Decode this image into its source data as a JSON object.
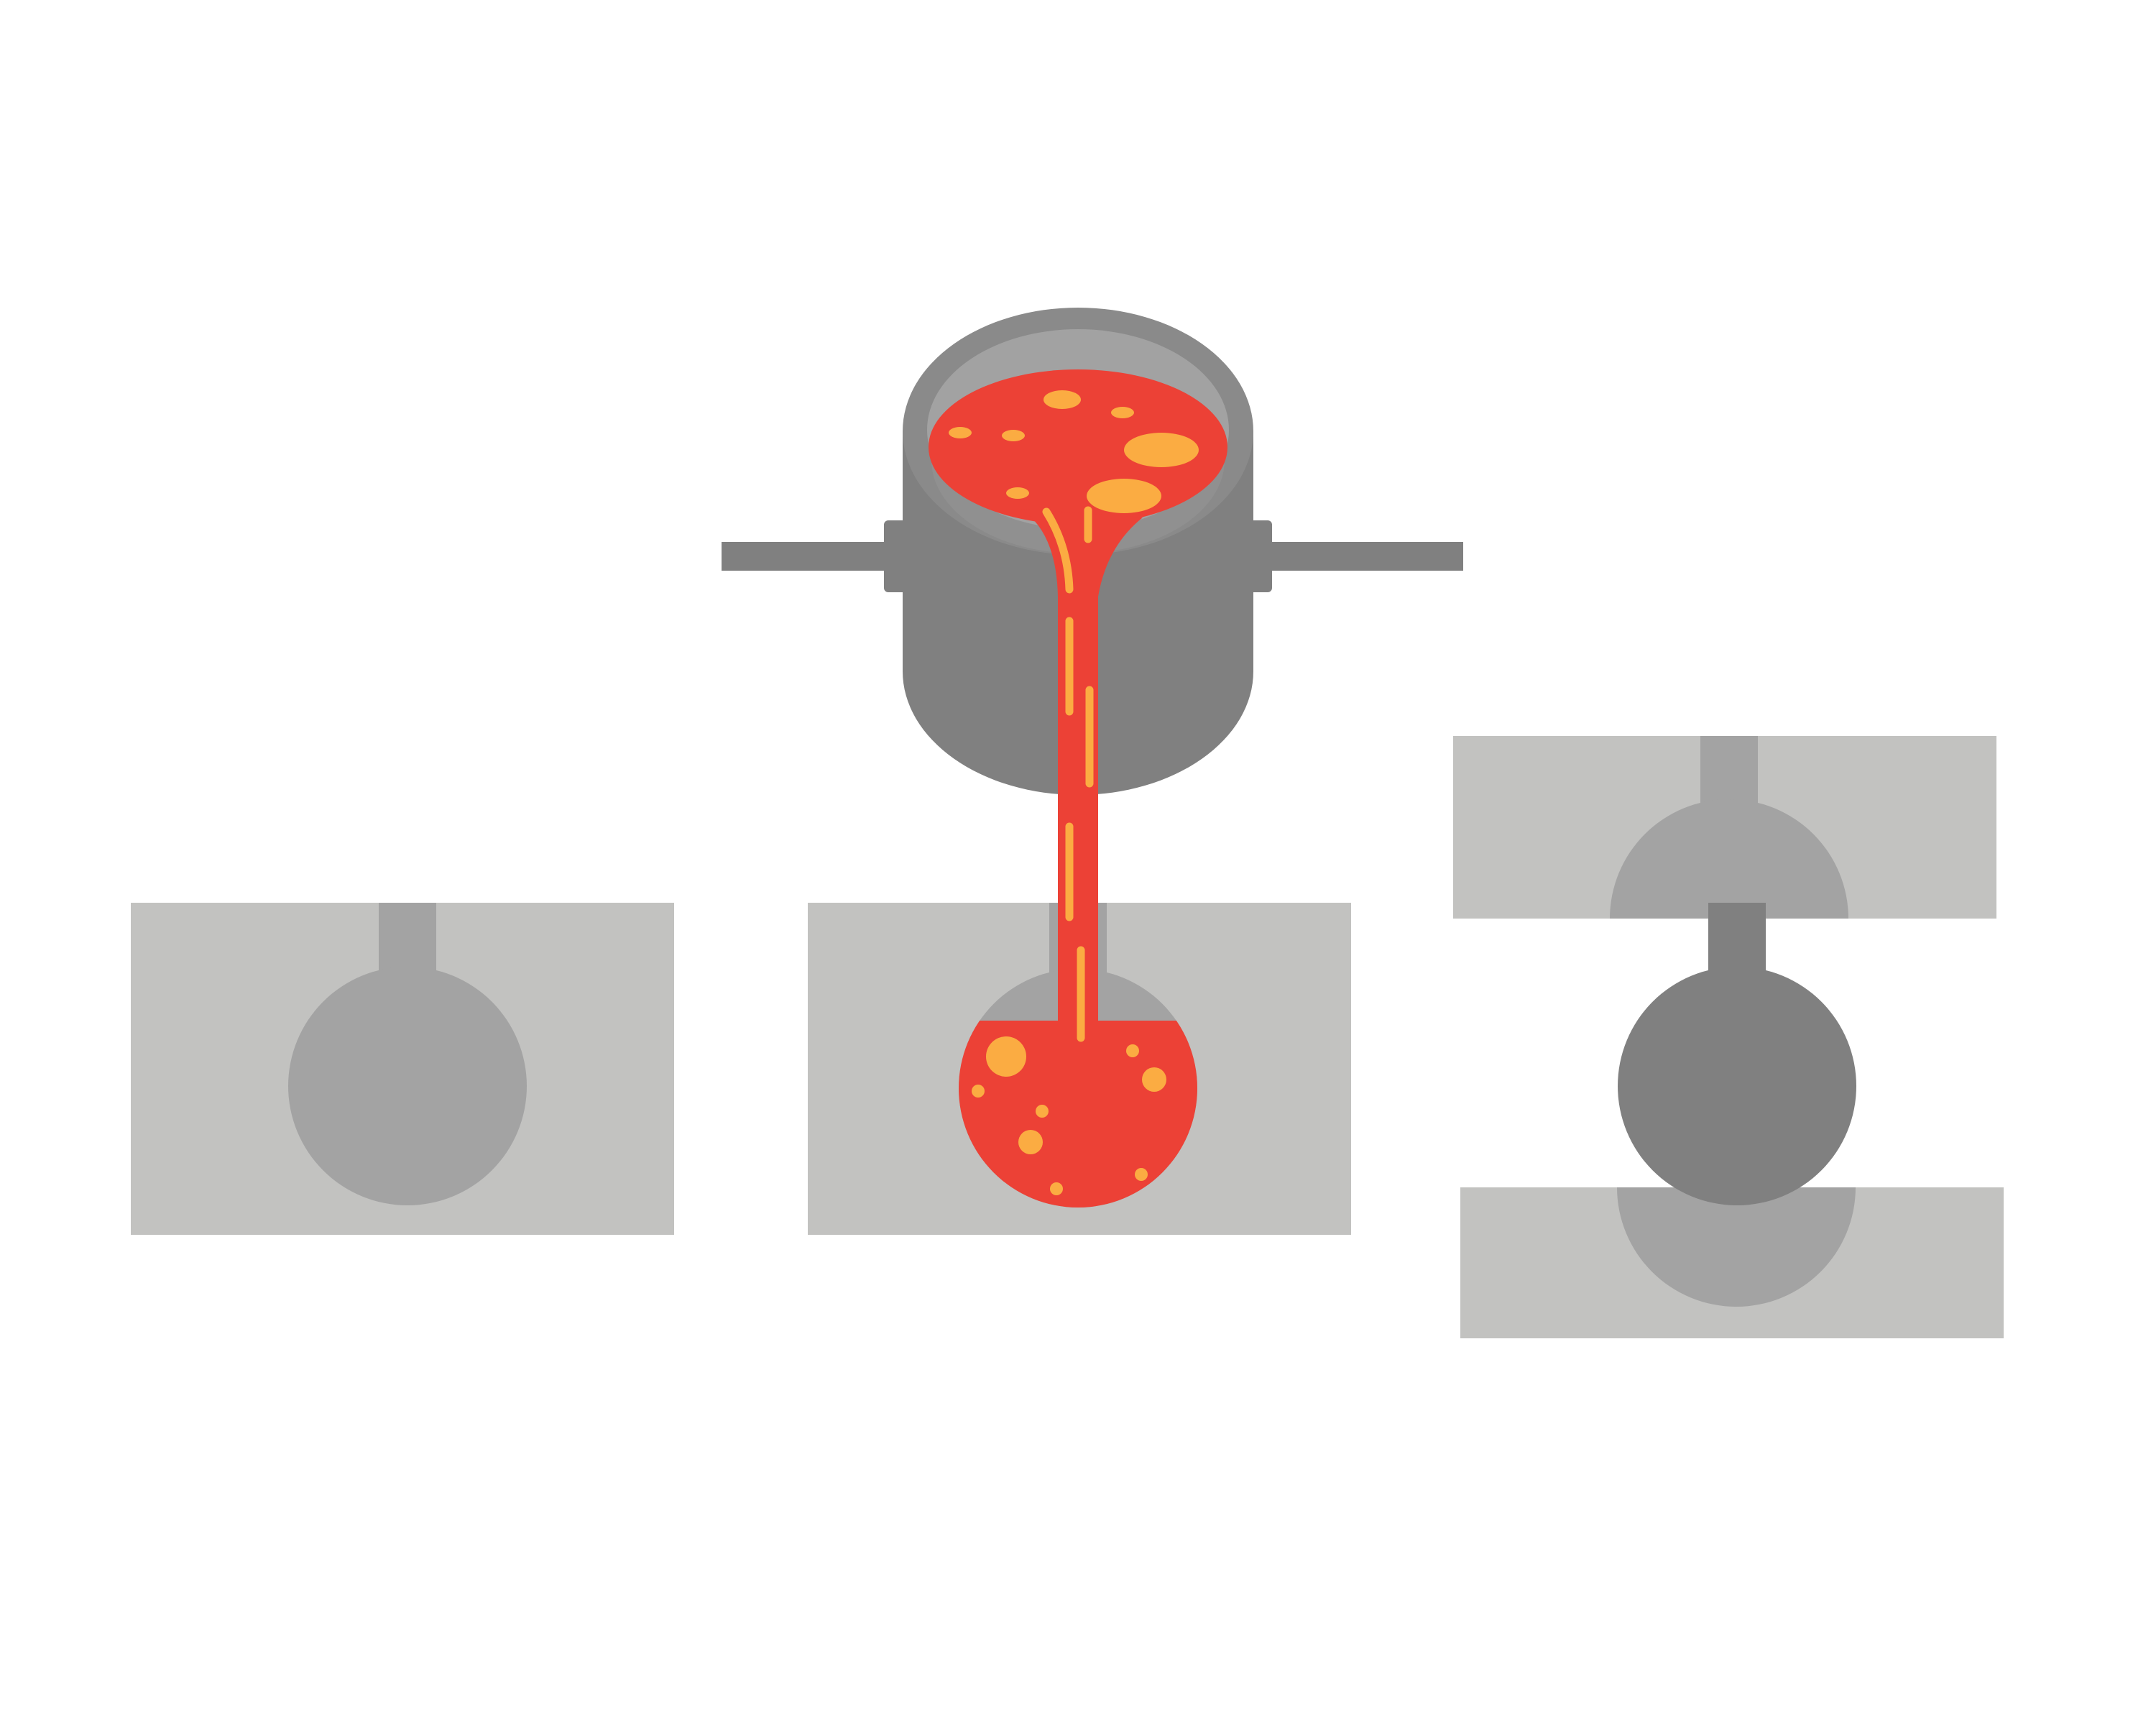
{
  "colors": {
    "background": "#ffffff",
    "mold": "#c2c2c0",
    "cavity": "#a3a3a3",
    "ladle_body": "#808080",
    "ladle_rim": "#a2a2a2",
    "casting": "#808080",
    "molten_metal": "#ec4136",
    "bubbles": "#fbac42"
  },
  "stages": [
    {
      "id": "empty-mold",
      "icon": "mold-with-spherical-cavity"
    },
    {
      "id": "pouring",
      "icon": "ladle-pouring-molten-metal"
    },
    {
      "id": "opened-mold",
      "icon": "split-mold-with-solid-casting"
    }
  ]
}
